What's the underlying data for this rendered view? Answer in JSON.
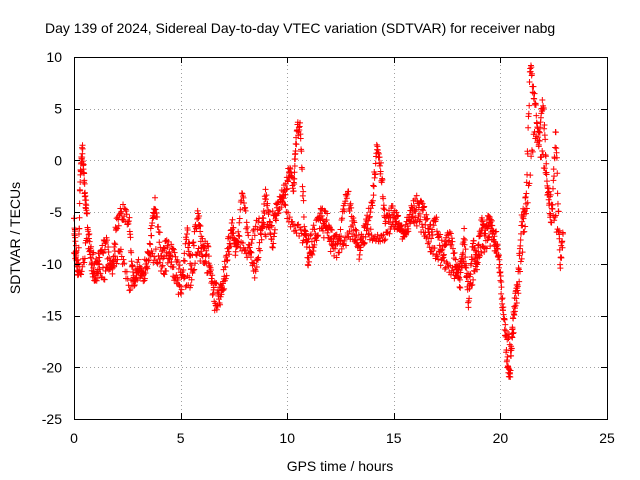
{
  "chart_data": {
    "type": "scatter",
    "title": "Day 139 of 2024, Sidereal Day-to-day VTEC variation (SDTVAR) for receiver nabg",
    "xlabel": "GPS time / hours",
    "ylabel": "SDTVAR / TECUs",
    "xlim": [
      0,
      25
    ],
    "ylim": [
      -25,
      10
    ],
    "xticks": [
      0,
      5,
      10,
      15,
      20,
      25
    ],
    "yticks": [
      -25,
      -20,
      -15,
      -10,
      -5,
      0,
      5,
      10
    ],
    "xtick_labels": [
      "0",
      "5",
      "10",
      "15",
      "20",
      "25"
    ],
    "ytick_labels": [
      "-25",
      "-20",
      "-15",
      "-10",
      "-5",
      "0",
      "5",
      "10"
    ],
    "grid": true,
    "marker": "+",
    "series": [
      {
        "name": "SDTVAR",
        "color": "#ff0000",
        "trace": [
          [
            0.0,
            -6
          ],
          [
            0.1,
            -9
          ],
          [
            0.2,
            -11
          ],
          [
            0.3,
            -1
          ],
          [
            0.4,
            1
          ],
          [
            0.5,
            -3
          ],
          [
            0.6,
            -5
          ],
          [
            0.8,
            -10
          ],
          [
            1.0,
            -12
          ],
          [
            1.2,
            -9
          ],
          [
            1.5,
            -8
          ],
          [
            1.8,
            -11
          ],
          [
            2.0,
            -6
          ],
          [
            2.3,
            -5
          ],
          [
            2.6,
            -6
          ],
          [
            2.8,
            -12
          ],
          [
            3.0,
            -10
          ],
          [
            3.3,
            -12
          ],
          [
            3.6,
            -7
          ],
          [
            3.8,
            -4
          ],
          [
            4.1,
            -9
          ],
          [
            4.4,
            -8
          ],
          [
            4.7,
            -11
          ],
          [
            5.0,
            -13
          ],
          [
            5.3,
            -7
          ],
          [
            5.5,
            -10
          ],
          [
            5.8,
            -5
          ],
          [
            6.0,
            -8
          ],
          [
            6.3,
            -9
          ],
          [
            6.6,
            -14
          ],
          [
            6.9,
            -13
          ],
          [
            7.1,
            -10
          ],
          [
            7.4,
            -6
          ],
          [
            7.6,
            -9
          ],
          [
            7.9,
            -3
          ],
          [
            8.2,
            -8
          ],
          [
            8.5,
            -11
          ],
          [
            8.8,
            -7
          ],
          [
            9.0,
            -3
          ],
          [
            9.3,
            -8
          ],
          [
            9.6,
            -4
          ],
          [
            9.9,
            -3
          ],
          [
            10.1,
            -1
          ],
          [
            10.3,
            -3
          ],
          [
            10.4,
            2
          ],
          [
            10.6,
            4
          ],
          [
            10.8,
            -6
          ],
          [
            11.0,
            -10
          ],
          [
            11.3,
            -8
          ],
          [
            11.6,
            -5
          ],
          [
            11.9,
            -6
          ],
          [
            12.2,
            -8
          ],
          [
            12.5,
            -7
          ],
          [
            12.8,
            -3
          ],
          [
            13.1,
            -6
          ],
          [
            13.4,
            -9
          ],
          [
            13.7,
            -6
          ],
          [
            14.0,
            -4
          ],
          [
            14.2,
            1
          ],
          [
            14.4,
            -1
          ],
          [
            14.6,
            -6
          ],
          [
            14.9,
            -5
          ],
          [
            15.2,
            -6
          ],
          [
            15.5,
            -7
          ],
          [
            15.8,
            -5
          ],
          [
            16.1,
            -4
          ],
          [
            16.4,
            -5
          ],
          [
            16.7,
            -7
          ],
          [
            17.0,
            -6
          ],
          [
            17.3,
            -9
          ],
          [
            17.6,
            -7
          ],
          [
            17.9,
            -10
          ],
          [
            18.1,
            -12
          ],
          [
            18.3,
            -7
          ],
          [
            18.5,
            -14
          ],
          [
            18.7,
            -8
          ],
          [
            18.9,
            -10
          ],
          [
            19.1,
            -6
          ],
          [
            19.3,
            -7
          ],
          [
            19.5,
            -5
          ],
          [
            19.7,
            -8
          ],
          [
            19.9,
            -9
          ],
          [
            20.1,
            -14
          ],
          [
            20.3,
            -19
          ],
          [
            20.45,
            -21
          ],
          [
            20.6,
            -15
          ],
          [
            20.8,
            -12
          ],
          [
            21.0,
            -6
          ],
          [
            21.2,
            -4
          ],
          [
            21.4,
            9
          ],
          [
            21.6,
            6
          ],
          [
            21.8,
            2
          ],
          [
            22.0,
            6
          ],
          [
            22.2,
            -3
          ],
          [
            22.4,
            -6
          ],
          [
            22.6,
            3
          ],
          [
            22.8,
            -10
          ],
          [
            22.95,
            -7
          ]
        ],
        "lower_trace": [
          [
            0.0,
            -9
          ],
          [
            0.3,
            -11
          ],
          [
            0.6,
            -8
          ],
          [
            1.0,
            -10
          ],
          [
            1.4,
            -11
          ],
          [
            1.8,
            -10
          ],
          [
            2.2,
            -9
          ],
          [
            2.6,
            -12
          ],
          [
            3.0,
            -11
          ],
          [
            3.4,
            -10
          ],
          [
            3.8,
            -9
          ],
          [
            4.2,
            -11
          ],
          [
            4.6,
            -8
          ],
          [
            5.0,
            -11
          ],
          [
            5.4,
            -12
          ],
          [
            5.8,
            -9
          ],
          [
            6.2,
            -10
          ],
          [
            6.6,
            -12
          ],
          [
            7.0,
            -13
          ],
          [
            7.4,
            -7
          ],
          [
            7.8,
            -8
          ],
          [
            8.2,
            -9
          ],
          [
            8.6,
            -6
          ],
          [
            9.0,
            -7
          ],
          [
            9.4,
            -5
          ],
          [
            9.8,
            -4
          ],
          [
            10.2,
            -6
          ],
          [
            10.6,
            -7
          ],
          [
            11.0,
            -8
          ],
          [
            11.4,
            -6
          ],
          [
            11.8,
            -7
          ],
          [
            12.2,
            -9
          ],
          [
            12.6,
            -8
          ],
          [
            13.0,
            -7
          ],
          [
            13.4,
            -8
          ],
          [
            13.8,
            -7
          ],
          [
            14.2,
            -8
          ],
          [
            14.6,
            -7
          ],
          [
            15.0,
            -6
          ],
          [
            15.4,
            -7
          ],
          [
            15.8,
            -6
          ],
          [
            16.2,
            -6
          ],
          [
            16.6,
            -8
          ],
          [
            17.0,
            -9
          ],
          [
            17.4,
            -10
          ],
          [
            17.8,
            -11
          ],
          [
            18.2,
            -10
          ],
          [
            18.6,
            -12
          ],
          [
            19.0,
            -9
          ],
          [
            19.4,
            -8
          ],
          [
            19.8,
            -7
          ],
          [
            20.2,
            -16
          ],
          [
            20.5,
            -18
          ],
          [
            20.8,
            -13
          ],
          [
            21.2,
            -5
          ],
          [
            21.6,
            3
          ],
          [
            22.0,
            0
          ],
          [
            22.4,
            -4
          ],
          [
            22.8,
            -8
          ]
        ]
      }
    ]
  }
}
